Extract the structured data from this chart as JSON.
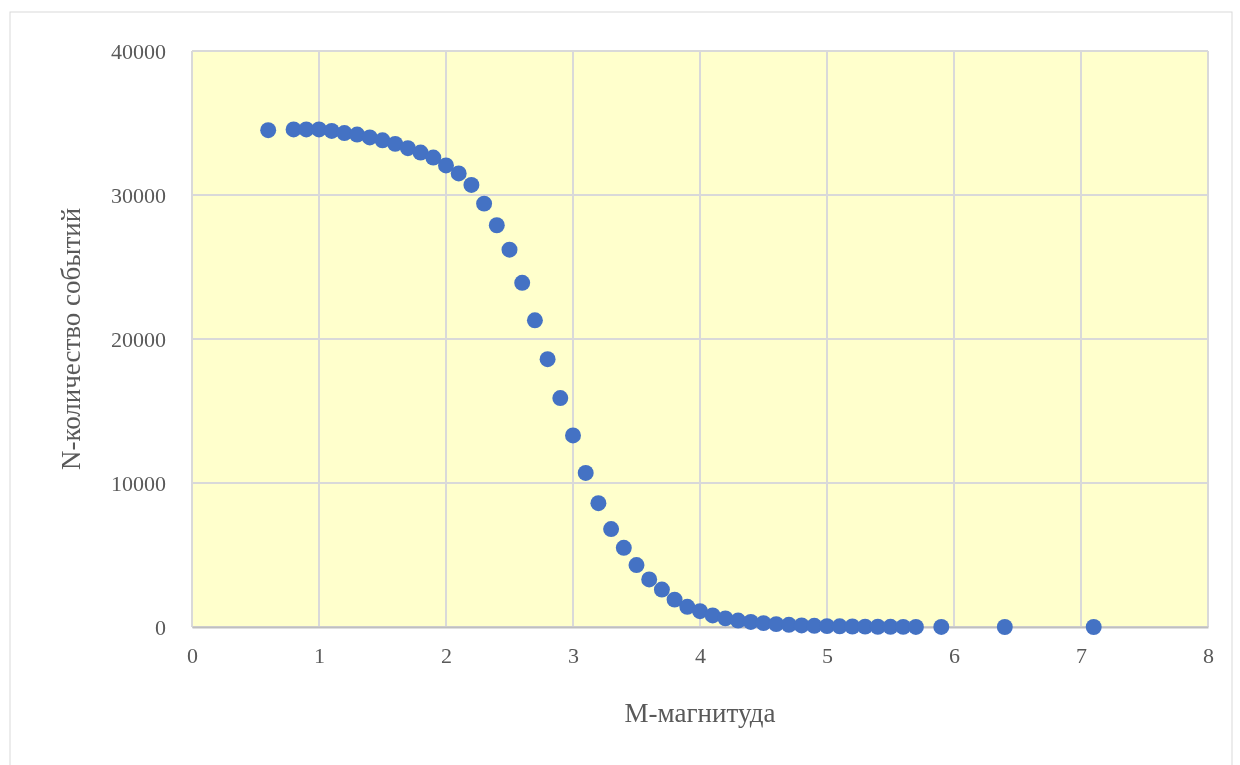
{
  "chart_data": {
    "type": "scatter",
    "xlabel": "M-магнитуда",
    "ylabel": "N-количество событий",
    "marker": "circle",
    "grid": true,
    "x": [
      0.6,
      0.8,
      0.9,
      1.0,
      1.1,
      1.2,
      1.3,
      1.4,
      1.5,
      1.6,
      1.7,
      1.8,
      1.9,
      2.0,
      2.1,
      2.2,
      2.3,
      2.4,
      2.5,
      2.6,
      2.7,
      2.8,
      2.9,
      3.0,
      3.1,
      3.2,
      3.3,
      3.4,
      3.5,
      3.6,
      3.7,
      3.8,
      3.9,
      4.0,
      4.1,
      4.2,
      4.3,
      4.4,
      4.5,
      4.6,
      4.7,
      4.8,
      4.9,
      5.0,
      5.1,
      5.2,
      5.3,
      5.4,
      5.5,
      5.6,
      5.7,
      5.9,
      6.4,
      7.1
    ],
    "series": [
      {
        "color": "#4472c4",
        "values": [
          34500,
          34550,
          34550,
          34550,
          34450,
          34300,
          34200,
          34000,
          33800,
          33550,
          33250,
          32950,
          32600,
          32050,
          31500,
          30700,
          29400,
          27900,
          26200,
          23900,
          21300,
          18600,
          15900,
          13300,
          10700,
          8600,
          6800,
          5500,
          4300,
          3300,
          2600,
          1900,
          1400,
          1100,
          800,
          600,
          450,
          350,
          270,
          200,
          150,
          110,
          80,
          60,
          45,
          35,
          25,
          18,
          12,
          8,
          5,
          3,
          1,
          1
        ]
      }
    ],
    "xlim": [
      0,
      8
    ],
    "xticks": [
      0,
      1,
      2,
      3,
      4,
      5,
      6,
      7,
      8
    ],
    "ylim": [
      0,
      40000
    ],
    "yticks": [
      0,
      10000,
      20000,
      30000,
      40000
    ]
  }
}
